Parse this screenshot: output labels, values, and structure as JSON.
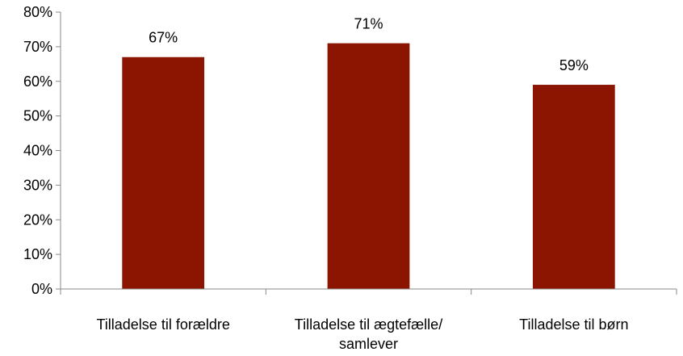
{
  "chart_data": {
    "type": "bar",
    "categories": [
      [
        "Tilladelse til forældre"
      ],
      [
        "Tilladelse til ægtefælle/",
        "samlever"
      ],
      [
        "Tilladelse til børn"
      ]
    ],
    "values": [
      67,
      71,
      59
    ],
    "data_labels": [
      "67%",
      "71%",
      "59%"
    ],
    "ylim": [
      0,
      80
    ],
    "yticks": [
      0,
      10,
      20,
      30,
      40,
      50,
      60,
      70,
      80
    ],
    "ytick_labels": [
      "0%",
      "10%",
      "20%",
      "30%",
      "40%",
      "50%",
      "60%",
      "70%",
      "80%"
    ],
    "title": "",
    "xlabel": "",
    "ylabel": "",
    "grid": false,
    "bar_color": "#8B1500"
  }
}
